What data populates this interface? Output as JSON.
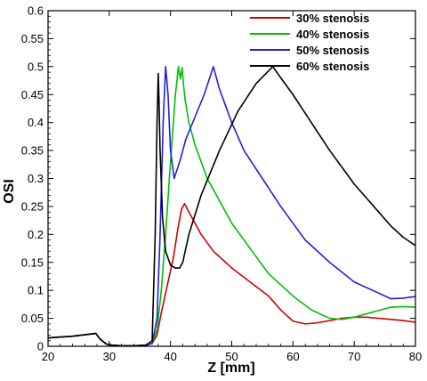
{
  "chart_data": {
    "type": "line",
    "xlabel": "Z [mm]",
    "ylabel": "OSI",
    "xlim": [
      20,
      80
    ],
    "ylim": [
      0,
      0.6
    ],
    "xticks": [
      20,
      30,
      40,
      50,
      60,
      70,
      80
    ],
    "yticks": [
      0,
      0.05,
      0.1,
      0.15,
      0.2,
      0.25,
      0.3,
      0.35,
      0.4,
      0.45,
      0.5,
      0.55,
      0.6
    ],
    "grid": false,
    "legend_position": "top-right",
    "series": [
      {
        "name": "30% stenosis",
        "color": "#d00000",
        "x": [
          20,
          24,
          27.8,
          28.5,
          29.5,
          30.5,
          32,
          34,
          36,
          37,
          37.8,
          38.5,
          39.5,
          40.5,
          41.2,
          41.8,
          42.3,
          43,
          44,
          45,
          47,
          50,
          53,
          56,
          58,
          60,
          62,
          64,
          66,
          68,
          70,
          72,
          74,
          76,
          78,
          80
        ],
        "y": [
          0.015,
          0.018,
          0.023,
          0.013,
          0.004,
          0.002,
          0.001,
          0.001,
          0.002,
          0.005,
          0.02,
          0.06,
          0.11,
          0.16,
          0.21,
          0.245,
          0.255,
          0.24,
          0.22,
          0.2,
          0.17,
          0.14,
          0.115,
          0.09,
          0.065,
          0.045,
          0.04,
          0.042,
          0.046,
          0.05,
          0.052,
          0.052,
          0.05,
          0.048,
          0.046,
          0.043
        ]
      },
      {
        "name": "40% stenosis",
        "color": "#00c000",
        "x": [
          20,
          24,
          27.8,
          28.5,
          29.5,
          30.5,
          32,
          34,
          36,
          37,
          37.8,
          38.5,
          39.2,
          40,
          40.8,
          41.3,
          41.6,
          41.9,
          42.1,
          42.4,
          43,
          44,
          46,
          48,
          50,
          53,
          56,
          60,
          63,
          66,
          68,
          70,
          72,
          74,
          76,
          78,
          80
        ],
        "y": [
          0.015,
          0.018,
          0.023,
          0.013,
          0.004,
          0.002,
          0.001,
          0.001,
          0.002,
          0.005,
          0.03,
          0.1,
          0.2,
          0.33,
          0.45,
          0.5,
          0.478,
          0.498,
          0.47,
          0.44,
          0.4,
          0.36,
          0.3,
          0.26,
          0.22,
          0.175,
          0.13,
          0.09,
          0.065,
          0.05,
          0.048,
          0.052,
          0.058,
          0.064,
          0.07,
          0.071,
          0.07
        ]
      },
      {
        "name": "50% stenosis",
        "color": "#2020e0",
        "x": [
          20,
          24,
          27.8,
          28.5,
          29.5,
          30.5,
          32,
          34,
          36,
          37,
          37.8,
          38.3,
          38.8,
          39.2,
          39.6,
          40,
          40.6,
          41.5,
          42.5,
          44,
          45.5,
          47,
          48,
          50,
          52,
          55,
          58,
          62,
          66,
          70,
          74,
          76,
          78,
          80
        ],
        "y": [
          0.015,
          0.018,
          0.023,
          0.013,
          0.004,
          0.002,
          0.001,
          0.001,
          0.002,
          0.005,
          0.05,
          0.2,
          0.4,
          0.5,
          0.45,
          0.35,
          0.3,
          0.33,
          0.37,
          0.41,
          0.45,
          0.5,
          0.46,
          0.4,
          0.35,
          0.3,
          0.25,
          0.19,
          0.15,
          0.115,
          0.095,
          0.085,
          0.086,
          0.089
        ]
      },
      {
        "name": "60% stenosis",
        "color": "#000000",
        "x": [
          20,
          24,
          27.8,
          28.5,
          29.5,
          30.5,
          32,
          34,
          36,
          37,
          37.5,
          37.8,
          38,
          38.1,
          38.3,
          38.7,
          39.2,
          40,
          40.8,
          41.5,
          42,
          43,
          45,
          48,
          51,
          54,
          56.7,
          58,
          60,
          63,
          66,
          70,
          74,
          76,
          78,
          80
        ],
        "y": [
          0.015,
          0.018,
          0.023,
          0.013,
          0.004,
          0.002,
          0.001,
          0.001,
          0.002,
          0.01,
          0.2,
          0.4,
          0.488,
          0.45,
          0.35,
          0.23,
          0.17,
          0.145,
          0.14,
          0.14,
          0.15,
          0.2,
          0.27,
          0.35,
          0.42,
          0.47,
          0.5,
          0.48,
          0.45,
          0.4,
          0.35,
          0.29,
          0.24,
          0.215,
          0.195,
          0.18
        ]
      }
    ]
  }
}
